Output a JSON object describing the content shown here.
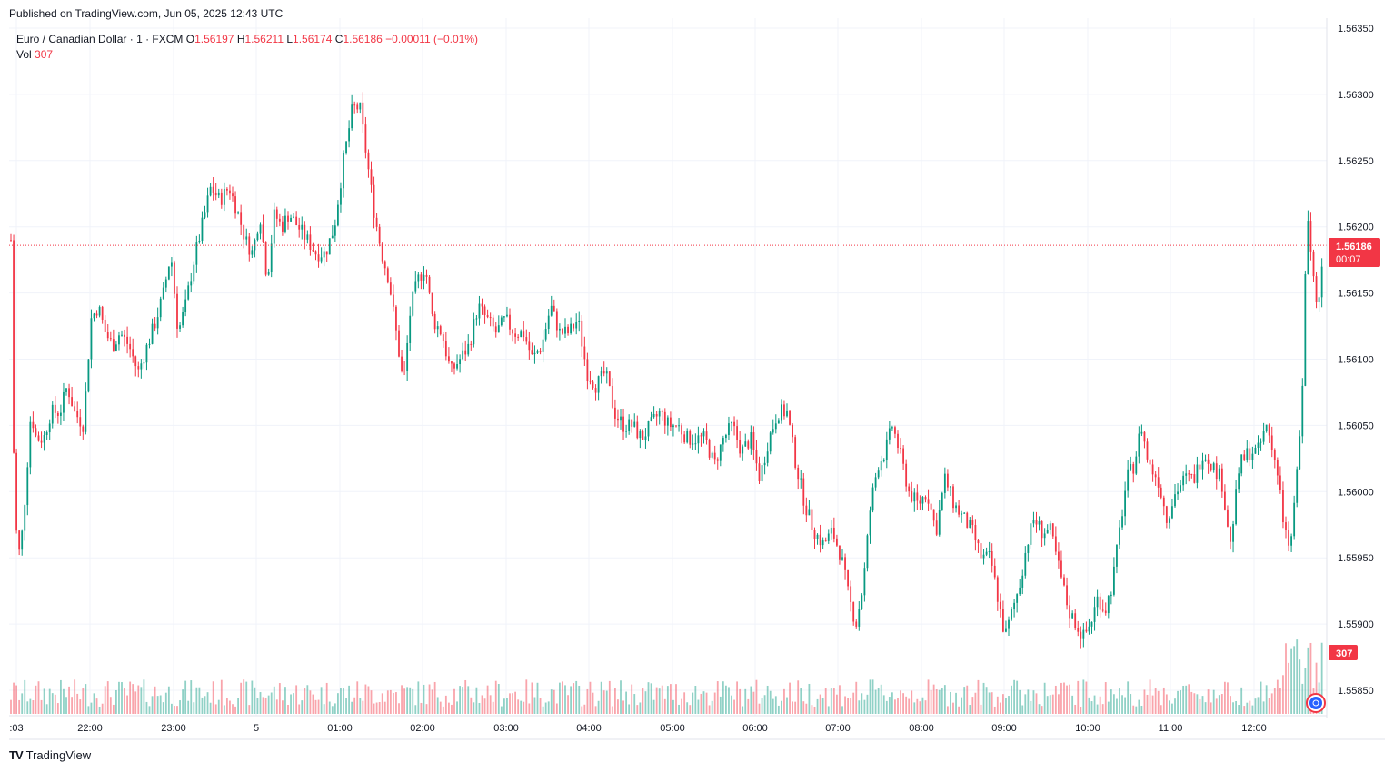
{
  "header": {
    "published": "Published on TradingView.com, Jun 05, 2025 12:43 UTC"
  },
  "legend": {
    "symbol": "Euro / Canadian Dollar · 1 · FXCM",
    "open_label": "O",
    "open": "1.56197",
    "high_label": "H",
    "high": "1.56211",
    "low_label": "L",
    "low": "1.56174",
    "close_label": "C",
    "close": "1.56186",
    "change": "−0.00011 (−0.01%)",
    "vol_label": "Vol",
    "vol": "307"
  },
  "price_tag": {
    "price": "1.56186",
    "countdown": "00:07"
  },
  "vol_tag": "307",
  "footer": {
    "logo_text": "TradingView",
    "logo_mark": "TV"
  },
  "colors": {
    "up": "#089981",
    "down": "#f23645",
    "grid": "#f0f3fa",
    "text": "#131722"
  },
  "chart_data": {
    "type": "candlestick",
    "ylim": [
      1.5583,
      1.5635
    ],
    "y_ticks": [
      "1.56350",
      "1.56300",
      "1.56250",
      "1.56200",
      "1.56150",
      "1.56100",
      "1.56050",
      "1.56000",
      "1.55950",
      "1.55900",
      "1.55850"
    ],
    "x_ticks": [
      ":03",
      "22:00",
      "23:00",
      "5",
      "01:00",
      "02:00",
      "03:00",
      "04:00",
      "05:00",
      "06:00",
      "07:00",
      "08:00",
      "09:00",
      "10:00",
      "11:00",
      "12:00"
    ],
    "last_price": 1.56186,
    "path": [
      [
        0,
        1.5619
      ],
      [
        4,
        1.5598
      ],
      [
        10,
        1.5595
      ],
      [
        16,
        1.56
      ],
      [
        22,
        1.5606
      ],
      [
        28,
        1.5604
      ],
      [
        36,
        1.5604
      ],
      [
        44,
        1.5606
      ],
      [
        54,
        1.5606
      ],
      [
        62,
        1.5608
      ],
      [
        70,
        1.5606
      ],
      [
        80,
        1.5605
      ],
      [
        88,
        1.5613
      ],
      [
        96,
        1.5614
      ],
      [
        104,
        1.5612
      ],
      [
        112,
        1.5611
      ],
      [
        120,
        1.5612
      ],
      [
        130,
        1.5611
      ],
      [
        140,
        1.5609
      ],
      [
        150,
        1.5611
      ],
      [
        160,
        1.5613
      ],
      [
        168,
        1.5615
      ],
      [
        176,
        1.5618
      ],
      [
        184,
        1.5612
      ],
      [
        192,
        1.5614
      ],
      [
        200,
        1.5617
      ],
      [
        210,
        1.562
      ],
      [
        220,
        1.5623
      ],
      [
        230,
        1.5622
      ],
      [
        240,
        1.5623
      ],
      [
        250,
        1.5621
      ],
      [
        258,
        1.5619
      ],
      [
        266,
        1.5618
      ],
      [
        274,
        1.5621
      ],
      [
        282,
        1.5616
      ],
      [
        290,
        1.5621
      ],
      [
        298,
        1.562
      ],
      [
        306,
        1.5621
      ],
      [
        316,
        1.562
      ],
      [
        326,
        1.5619
      ],
      [
        336,
        1.5618
      ],
      [
        346,
        1.5618
      ],
      [
        356,
        1.562
      ],
      [
        366,
        1.5625
      ],
      [
        376,
        1.5629
      ],
      [
        384,
        1.5629
      ],
      [
        392,
        1.5625
      ],
      [
        400,
        1.5621
      ],
      [
        408,
        1.5618
      ],
      [
        416,
        1.5616
      ],
      [
        424,
        1.5612
      ],
      [
        432,
        1.5608
      ],
      [
        440,
        1.5614
      ],
      [
        448,
        1.5616
      ],
      [
        456,
        1.5617
      ],
      [
        464,
        1.5613
      ],
      [
        474,
        1.5612
      ],
      [
        484,
        1.5609
      ],
      [
        494,
        1.561
      ],
      [
        504,
        1.5611
      ],
      [
        514,
        1.5614
      ],
      [
        524,
        1.5613
      ],
      [
        534,
        1.5612
      ],
      [
        544,
        1.5613
      ],
      [
        554,
        1.5612
      ],
      [
        564,
        1.5612
      ],
      [
        574,
        1.561
      ],
      [
        584,
        1.5611
      ],
      [
        594,
        1.5614
      ],
      [
        604,
        1.5612
      ],
      [
        614,
        1.5612
      ],
      [
        624,
        1.5613
      ],
      [
        634,
        1.5609
      ],
      [
        644,
        1.5608
      ],
      [
        654,
        1.5609
      ],
      [
        664,
        1.5606
      ],
      [
        674,
        1.5605
      ],
      [
        684,
        1.5605
      ],
      [
        694,
        1.5604
      ],
      [
        704,
        1.5605
      ],
      [
        714,
        1.5606
      ],
      [
        724,
        1.5605
      ],
      [
        734,
        1.5605
      ],
      [
        744,
        1.5604
      ],
      [
        754,
        1.5604
      ],
      [
        764,
        1.5604
      ],
      [
        774,
        1.5602
      ],
      [
        784,
        1.5604
      ],
      [
        794,
        1.5605
      ],
      [
        804,
        1.5603
      ],
      [
        814,
        1.5604
      ],
      [
        824,
        1.5601
      ],
      [
        834,
        1.5604
      ],
      [
        844,
        1.5606
      ],
      [
        854,
        1.5606
      ],
      [
        864,
        1.5602
      ],
      [
        874,
        1.5599
      ],
      [
        884,
        1.5597
      ],
      [
        894,
        1.5596
      ],
      [
        904,
        1.5597
      ],
      [
        914,
        1.5595
      ],
      [
        922,
        1.5592
      ],
      [
        930,
        1.559
      ],
      [
        938,
        1.5593
      ],
      [
        946,
        1.5599
      ],
      [
        954,
        1.5602
      ],
      [
        962,
        1.5603
      ],
      [
        970,
        1.5605
      ],
      [
        978,
        1.5603
      ],
      [
        988,
        1.56
      ],
      [
        998,
        1.5599
      ],
      [
        1008,
        1.56
      ],
      [
        1018,
        1.5597
      ],
      [
        1028,
        1.5601
      ],
      [
        1038,
        1.5599
      ],
      [
        1048,
        1.5598
      ],
      [
        1058,
        1.5597
      ],
      [
        1068,
        1.5595
      ],
      [
        1078,
        1.5595
      ],
      [
        1086,
        1.5592
      ],
      [
        1094,
        1.5589
      ],
      [
        1102,
        1.5591
      ],
      [
        1110,
        1.5593
      ],
      [
        1118,
        1.5596
      ],
      [
        1126,
        1.5598
      ],
      [
        1134,
        1.5597
      ],
      [
        1144,
        1.5597
      ],
      [
        1154,
        1.5594
      ],
      [
        1164,
        1.5591
      ],
      [
        1172,
        1.559
      ],
      [
        1180,
        1.5589
      ],
      [
        1188,
        1.559
      ],
      [
        1196,
        1.5592
      ],
      [
        1204,
        1.5591
      ],
      [
        1212,
        1.5593
      ],
      [
        1220,
        1.5597
      ],
      [
        1228,
        1.5601
      ],
      [
        1236,
        1.5602
      ],
      [
        1244,
        1.5605
      ],
      [
        1252,
        1.5602
      ],
      [
        1262,
        1.5601
      ],
      [
        1272,
        1.5598
      ],
      [
        1282,
        1.56
      ],
      [
        1292,
        1.5601
      ],
      [
        1302,
        1.5601
      ],
      [
        1312,
        1.5603
      ],
      [
        1322,
        1.5602
      ],
      [
        1332,
        1.5601
      ],
      [
        1342,
        1.5596
      ],
      [
        1352,
        1.5602
      ],
      [
        1362,
        1.5603
      ],
      [
        1372,
        1.5603
      ],
      [
        1382,
        1.5605
      ],
      [
        1392,
        1.5602
      ],
      [
        1400,
        1.5598
      ],
      [
        1408,
        1.5595
      ],
      [
        1414,
        1.5601
      ],
      [
        1420,
        1.5605
      ],
      [
        1426,
        1.5621
      ],
      [
        1432,
        1.5617
      ],
      [
        1438,
        1.5614
      ],
      [
        1444,
        1.56186
      ]
    ],
    "volume_max": 1.0
  }
}
